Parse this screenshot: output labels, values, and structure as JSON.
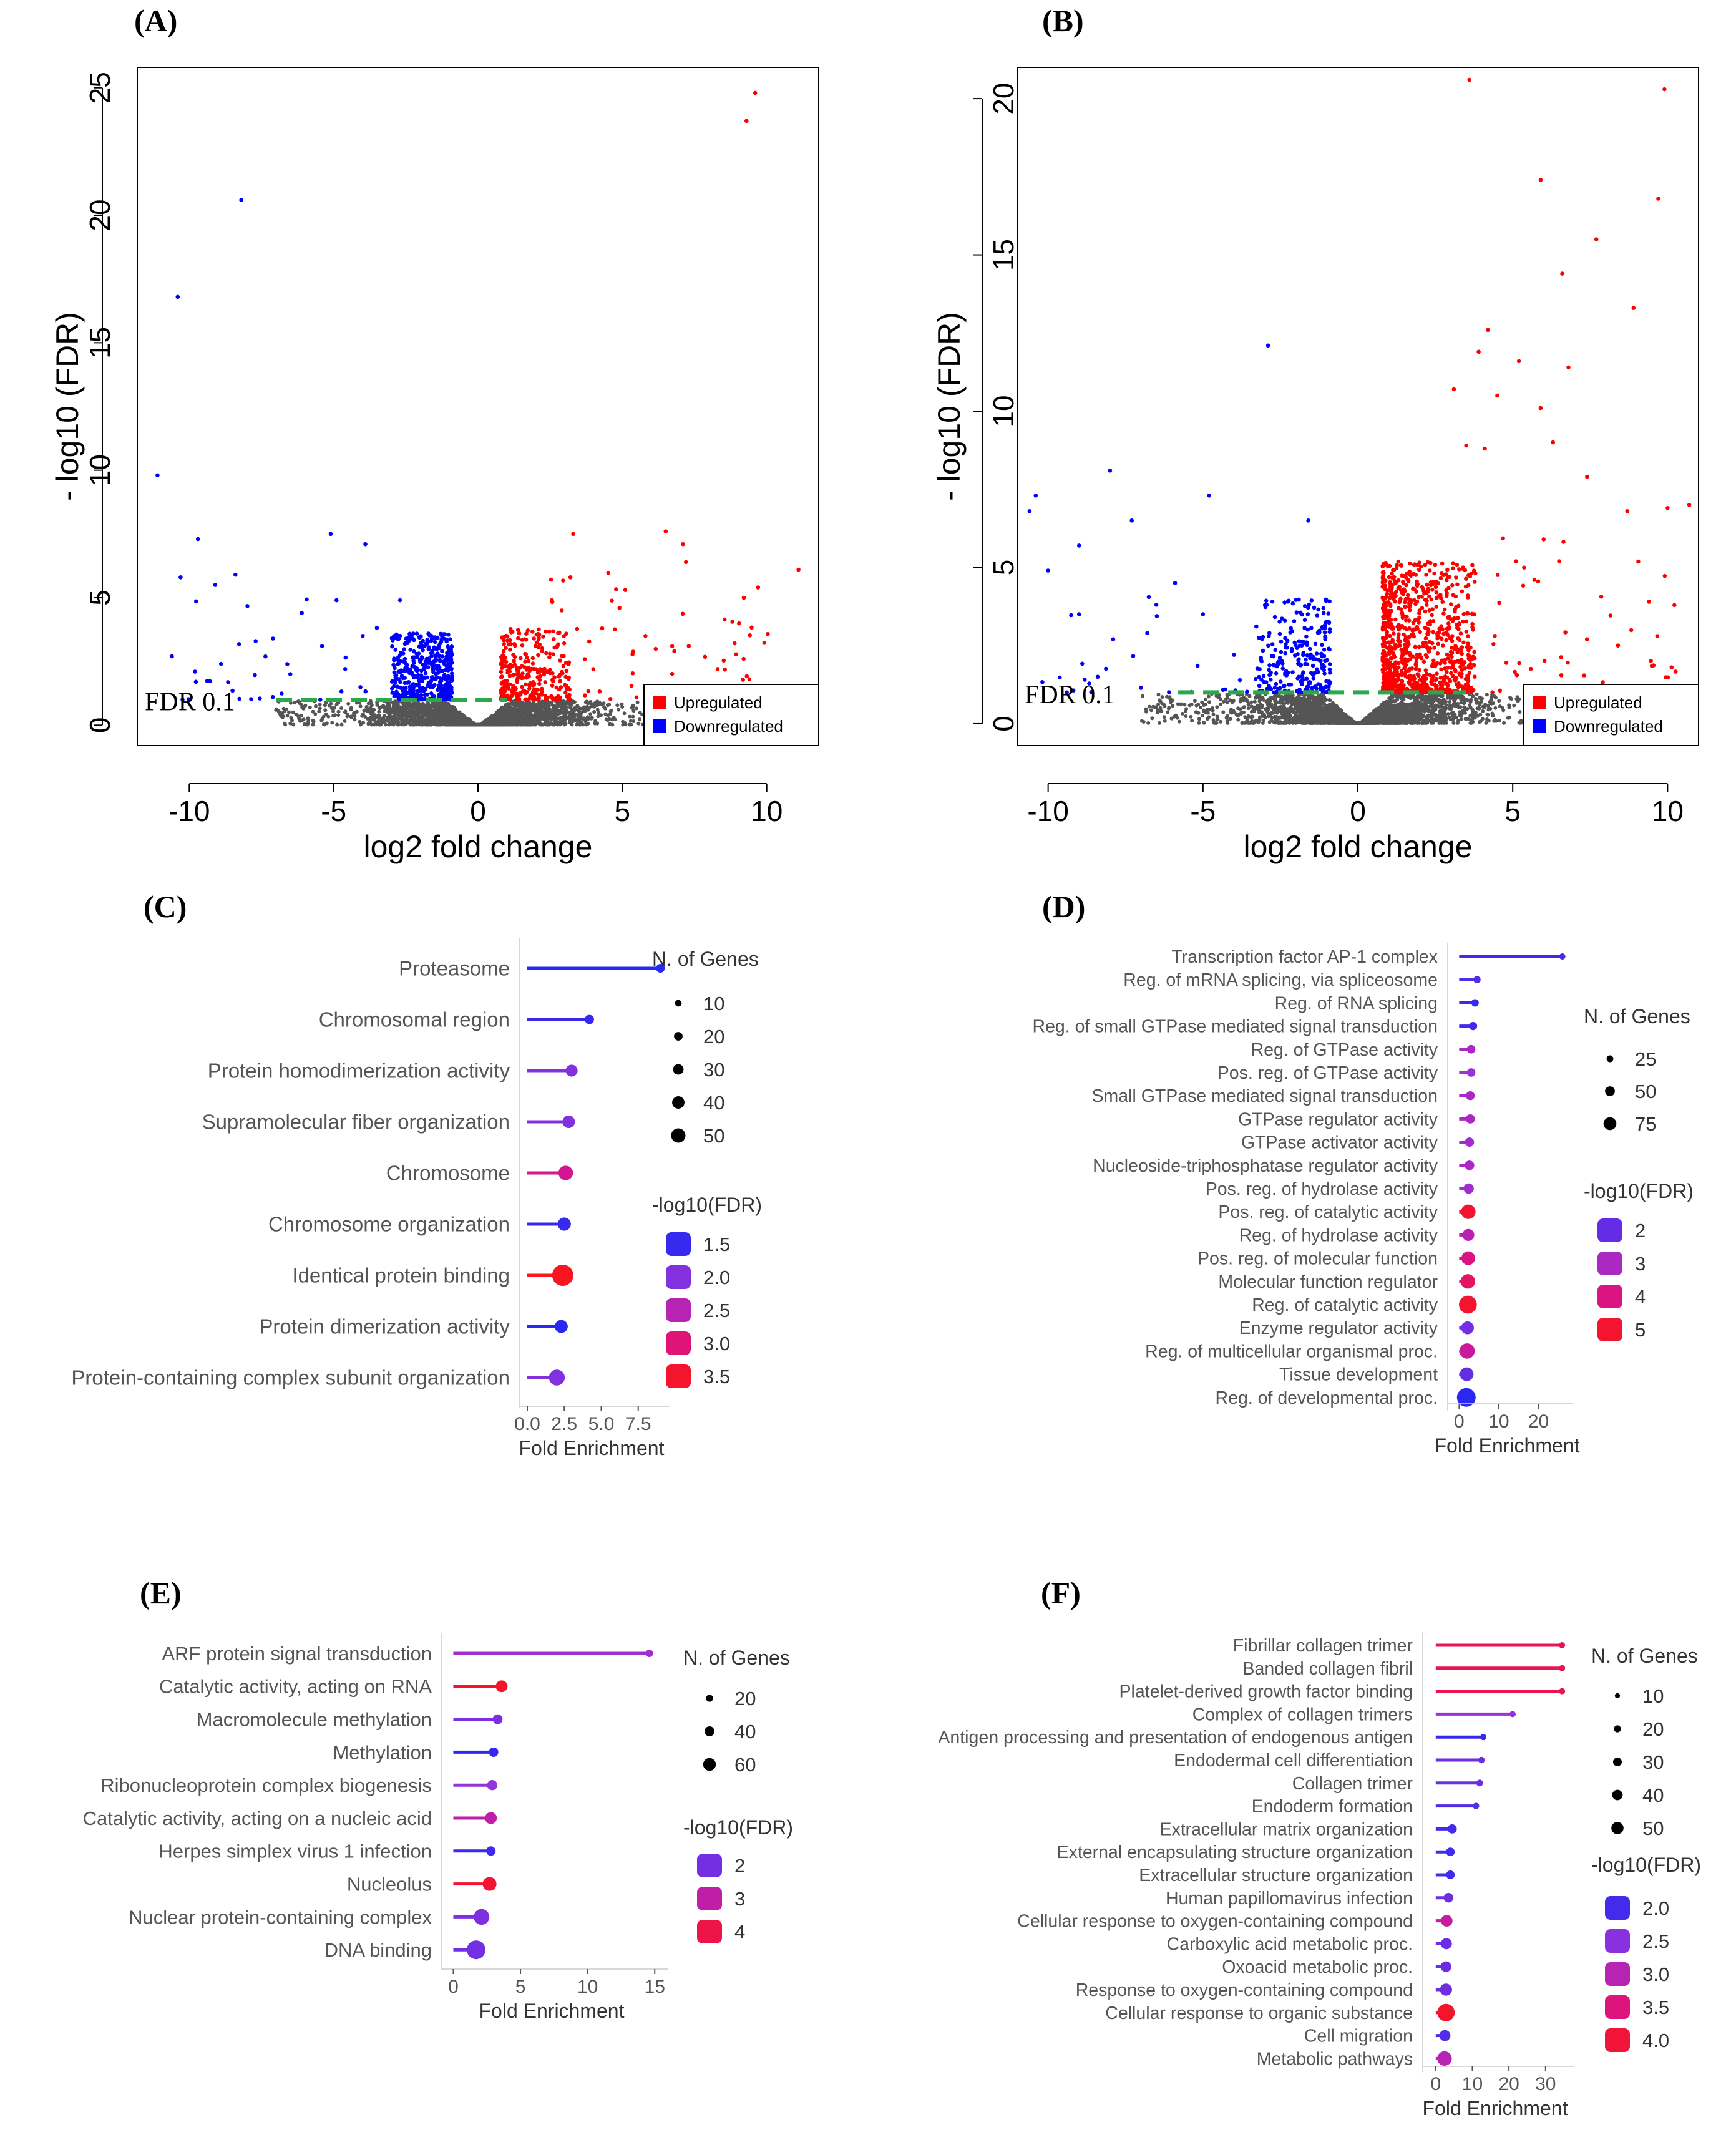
{
  "chart_data": [
    {
      "id": "A",
      "type": "scatter",
      "panel_label": "(A)",
      "xlabel": "log2 fold change",
      "ylabel": "- log10 (FDR)",
      "xlim": [
        -11.8,
        11.8
      ],
      "ylim": [
        -0.8,
        25.8
      ],
      "xticks": [
        -10,
        -5,
        0,
        5,
        10
      ],
      "xtick_labels": [
        "-10",
        "-5",
        "0",
        "5",
        "10"
      ],
      "yticks": [
        0,
        5,
        10,
        15,
        20,
        25
      ],
      "ytick_labels": [
        "0",
        "5",
        "10",
        "15",
        "20",
        "25"
      ],
      "threshold_y": 1,
      "threshold_range": [
        -7,
        1
      ],
      "threshold_label": "FDR 0.1",
      "legend": [
        {
          "label": "Upregulated",
          "color": "#ff0000"
        },
        {
          "label": "Downregulated",
          "color": "#0000ff"
        }
      ],
      "legend_position": "bottom-right",
      "colors": {
        "up": "#ff0000",
        "down": "#0000ff",
        "ns": "#555555",
        "threshold": "#2ca84c"
      },
      "highlight_up": [
        [
          9.6,
          24.8
        ],
        [
          9.3,
          23.7
        ],
        [
          6.5,
          7.6
        ],
        [
          7.1,
          7.1
        ],
        [
          11.1,
          6.1
        ],
        [
          7.2,
          6.4
        ],
        [
          3.2,
          5.8
        ],
        [
          9.7,
          5.4
        ],
        [
          5.1,
          5.3
        ],
        [
          4.9,
          4.6
        ],
        [
          2.9,
          4.5
        ],
        [
          7.3,
          3.1
        ],
        [
          8.3,
          2.2
        ],
        [
          9.4,
          1.8
        ],
        [
          9.2,
          2.6
        ],
        [
          6.8,
          2.9
        ],
        [
          4.3,
          3.8
        ],
        [
          5.8,
          3.5
        ],
        [
          3.3,
          7.5
        ]
      ],
      "highlight_down": [
        [
          -8.2,
          20.6
        ],
        [
          -10.4,
          16.8
        ],
        [
          -11.1,
          9.8
        ],
        [
          -9.7,
          7.3
        ],
        [
          -5.1,
          7.5
        ],
        [
          -3.9,
          7.1
        ],
        [
          -10.3,
          5.8
        ],
        [
          -8.4,
          5.9
        ],
        [
          -9.1,
          5.5
        ],
        [
          -2.7,
          4.9
        ],
        [
          -6.1,
          4.4
        ],
        [
          -4.9,
          4.9
        ],
        [
          -10.6,
          2.7
        ],
        [
          -9.8,
          2.1
        ],
        [
          -6.5,
          2.0
        ],
        [
          -5.4,
          3.1
        ],
        [
          -4.6,
          2.2
        ],
        [
          -8.9,
          2.4
        ],
        [
          -7.7,
          3.3
        ]
      ],
      "cloud": {
        "up_count": 300,
        "down_count": 420,
        "ns_count": 2800,
        "seed": 11
      }
    },
    {
      "id": "B",
      "type": "scatter",
      "panel_label": "(B)",
      "xlabel": "log2 fold change",
      "ylabel": "- log10 (FDR)",
      "xlim": [
        -11.0,
        11.0
      ],
      "ylim": [
        -0.7,
        21.0
      ],
      "xticks": [
        -10,
        -5,
        0,
        5,
        10
      ],
      "xtick_labels": [
        "-10",
        "-5",
        "0",
        "5",
        "10"
      ],
      "yticks": [
        0,
        5,
        10,
        15,
        20
      ],
      "ytick_labels": [
        "0",
        "5",
        "10",
        "15",
        "20"
      ],
      "threshold_y": 1,
      "threshold_range": [
        -5.8,
        3.5
      ],
      "threshold_label": "FDR 0.1",
      "legend": [
        {
          "label": "Upregulated",
          "color": "#ff0000"
        },
        {
          "label": "Downregulated",
          "color": "#0000ff"
        }
      ],
      "legend_position": "bottom-right",
      "colors": {
        "up": "#ff0000",
        "down": "#0000ff",
        "ns": "#555555",
        "threshold": "#2ca84c"
      },
      "highlight_up": [
        [
          3.6,
          20.6
        ],
        [
          9.9,
          20.3
        ],
        [
          5.9,
          17.4
        ],
        [
          9.7,
          16.8
        ],
        [
          7.7,
          15.5
        ],
        [
          6.6,
          14.4
        ],
        [
          8.9,
          13.3
        ],
        [
          4.2,
          12.6
        ],
        [
          3.9,
          11.9
        ],
        [
          5.2,
          11.6
        ],
        [
          6.8,
          11.4
        ],
        [
          3.1,
          10.7
        ],
        [
          4.5,
          10.5
        ],
        [
          5.9,
          10.1
        ],
        [
          3.5,
          8.9
        ],
        [
          4.1,
          8.8
        ],
        [
          6.3,
          9.0
        ],
        [
          7.4,
          7.9
        ],
        [
          10.0,
          6.9
        ],
        [
          10.7,
          7.0
        ],
        [
          8.7,
          6.8
        ],
        [
          6.0,
          5.9
        ],
        [
          6.5,
          5.2
        ],
        [
          9.4,
          3.9
        ],
        [
          8.4,
          2.5
        ],
        [
          5.7,
          4.6
        ]
      ],
      "highlight_down": [
        [
          -2.9,
          12.1
        ],
        [
          -8.0,
          8.1
        ],
        [
          -10.4,
          7.3
        ],
        [
          -10.6,
          6.8
        ],
        [
          -7.3,
          6.5
        ],
        [
          -4.8,
          7.3
        ],
        [
          -1.6,
          6.5
        ],
        [
          -9.0,
          5.7
        ],
        [
          -10.0,
          4.9
        ],
        [
          -5.9,
          4.5
        ],
        [
          -5.0,
          3.5
        ],
        [
          -9.0,
          3.5
        ],
        [
          -7.9,
          2.7
        ],
        [
          -8.4,
          1.5
        ],
        [
          -6.8,
          2.9
        ],
        [
          -4.0,
          2.2
        ]
      ],
      "cloud": {
        "up_count": 900,
        "down_count": 260,
        "ns_count": 2600,
        "seed": 23
      }
    },
    {
      "id": "C",
      "type": "lollipop",
      "panel_label": "(C)",
      "xlabel": "Fold Enrichment",
      "xlim": [
        0,
        9.2
      ],
      "xticks": [
        0,
        2.5,
        5,
        7.5
      ],
      "xtick_labels": [
        "0.0",
        "2.5",
        "5.0",
        "7.5"
      ],
      "categories": [
        "Proteasome",
        "Chromosomal region",
        "Protein homodimerization activity",
        "Supramolecular fiber organization",
        "Chromosome",
        "Chromosome organization",
        "Identical protein binding",
        "Protein dimerization activity",
        "Protein-containing complex subunit organization"
      ],
      "values": [
        9.0,
        4.2,
        3.0,
        2.8,
        2.6,
        2.5,
        2.4,
        2.3,
        2.0
      ],
      "genes": [
        8,
        10,
        20,
        22,
        30,
        25,
        55,
        24,
        35
      ],
      "neglog10_fdr": [
        1.4,
        1.5,
        2.0,
        2.0,
        2.8,
        1.5,
        3.6,
        1.4,
        2.0
      ],
      "size_legend_title": "N. of Genes",
      "size_legend_values": [
        "10",
        "20",
        "30",
        "40",
        "50"
      ],
      "color_legend_title": "-log10(FDR)",
      "color_legend_values": [
        "1.5",
        "2.0",
        "2.5",
        "3.0",
        "3.5"
      ],
      "color_range": [
        1.4,
        3.6
      ],
      "size_range": [
        8,
        55
      ]
    },
    {
      "id": "D",
      "type": "lollipop",
      "panel_label": "(D)",
      "xlabel": "Fold Enrichment",
      "xlim": [
        -1,
        27
      ],
      "xticks": [
        0,
        10,
        20
      ],
      "xtick_labels": [
        "0",
        "10",
        "20"
      ],
      "categories": [
        "Transcription factor AP-1 complex",
        "Reg. of mRNA splicing, via spliceosome",
        "Reg. of RNA splicing",
        "Reg. of small GTPase mediated signal transduction",
        "Reg. of GTPase activity",
        "Pos. reg. of GTPase activity",
        "Small GTPase mediated signal transduction",
        "GTPase regulator activity",
        "GTPase activator activity",
        "Nucleoside-triphosphatase regulator activity",
        "Pos. reg. of hydrolase activity",
        "Pos. reg. of catalytic activity",
        "Reg. of hydrolase activity",
        "Pos. reg. of molecular function",
        "Molecular function regulator",
        "Reg. of catalytic activity",
        "Enzyme regulator activity",
        "Reg. of multicellular organismal proc.",
        "Tissue development",
        "Reg. of developmental proc."
      ],
      "values": [
        26,
        4.5,
        4.0,
        3.5,
        3.0,
        3.0,
        2.8,
        2.8,
        2.6,
        2.6,
        2.4,
        2.3,
        2.3,
        2.3,
        2.2,
        2.2,
        2.1,
        2.0,
        1.9,
        1.8
      ],
      "genes": [
        6,
        12,
        14,
        18,
        20,
        20,
        22,
        24,
        24,
        26,
        30,
        55,
        40,
        50,
        55,
        75,
        45,
        60,
        50,
        80
      ],
      "neglog10_fdr": [
        1.6,
        1.8,
        1.5,
        1.6,
        3.0,
        2.7,
        3.0,
        3.0,
        2.8,
        3.0,
        2.8,
        5.0,
        3.3,
        4.0,
        4.4,
        5.0,
        2.2,
        3.6,
        2.0,
        1.3
      ],
      "size_legend_title": "N. of Genes",
      "size_legend_values": [
        "25",
        "50",
        "75"
      ],
      "color_legend_title": "-log10(FDR)",
      "color_legend_values": [
        "2",
        "3",
        "4",
        "5"
      ],
      "color_range": [
        1.3,
        5.2
      ],
      "size_range": [
        6,
        80
      ]
    },
    {
      "id": "E",
      "type": "lollipop",
      "panel_label": "(E)",
      "xlabel": "Fold Enrichment",
      "xlim": [
        -0.3,
        15.5
      ],
      "xticks": [
        0,
        5,
        10,
        15
      ],
      "xtick_labels": [
        "0",
        "5",
        "10",
        "15"
      ],
      "categories": [
        "ARF protein signal transduction",
        "Catalytic activity, acting on RNA",
        "Macromolecule methylation",
        "Methylation",
        "Ribonucleoprotein complex biogenesis",
        "Catalytic activity, acting on a nucleic acid",
        "Herpes simplex virus 1 infection",
        "Nucleolus",
        "Nuclear protein-containing complex",
        "DNA binding"
      ],
      "values": [
        14.6,
        3.6,
        3.3,
        3.0,
        2.9,
        2.8,
        2.8,
        2.7,
        2.1,
        1.7
      ],
      "genes": [
        8,
        30,
        20,
        18,
        22,
        30,
        18,
        40,
        50,
        65
      ],
      "neglog10_fdr": [
        2.5,
        4.3,
        2.1,
        1.4,
        2.3,
        3.0,
        1.5,
        4.2,
        2.1,
        2.0
      ],
      "size_legend_title": "N. of Genes",
      "size_legend_values": [
        "20",
        "40",
        "60"
      ],
      "color_legend_title": "-log10(FDR)",
      "color_legend_values": [
        "2",
        "3",
        "4"
      ],
      "color_range": [
        1.3,
        4.4
      ],
      "size_range": [
        8,
        65
      ]
    },
    {
      "id": "F",
      "type": "lollipop",
      "panel_label": "(F)",
      "xlabel": "Fold Enrichment",
      "xlim": [
        -1.5,
        36
      ],
      "xticks": [
        0,
        10,
        20,
        30
      ],
      "xtick_labels": [
        "0",
        "10",
        "20",
        "30"
      ],
      "categories": [
        "Fibrillar collagen trimer",
        "Banded collagen fibril",
        "Platelet-derived growth factor binding",
        "Complex of collagen trimers",
        "Antigen processing and presentation of endogenous antigen",
        "Endodermal cell differentiation",
        "Collagen trimer",
        "Endoderm formation",
        "Extracellular matrix organization",
        "External encapsulating structure organization",
        "Extracellular structure organization",
        "Human papillomavirus infection",
        "Cellular response to oxygen-containing compound",
        "Carboxylic acid metabolic proc.",
        "Oxoacid metabolic proc.",
        "Response to oxygen-containing compound",
        "Cellular response to organic substance",
        "Cell migration",
        "Metabolic pathways"
      ],
      "values": [
        34.5,
        34.5,
        34.5,
        21,
        13,
        12.5,
        12,
        11,
        4.5,
        4.0,
        4.0,
        3.5,
        3.0,
        2.9,
        2.8,
        2.8,
        2.8,
        2.5,
        2.4
      ],
      "genes": [
        6,
        6,
        6,
        6,
        6,
        7,
        8,
        7,
        18,
        16,
        16,
        20,
        28,
        26,
        24,
        30,
        52,
        26,
        40
      ],
      "neglog10_fdr": [
        3.8,
        3.8,
        3.8,
        2.6,
        1.9,
        2.3,
        2.3,
        2.1,
        2.0,
        2.0,
        2.0,
        2.3,
        3.2,
        2.3,
        2.3,
        2.3,
        4.1,
        2.1,
        3.0
      ],
      "size_legend_title": "N. of Genes",
      "size_legend_values": [
        "10",
        "20",
        "30",
        "40",
        "50"
      ],
      "color_legend_title": "-log10(FDR)",
      "color_legend_values": [
        "2.0",
        "2.5",
        "3.0",
        "3.5",
        "4.0"
      ],
      "color_range": [
        1.8,
        4.2
      ],
      "size_range": [
        6,
        52
      ]
    }
  ]
}
